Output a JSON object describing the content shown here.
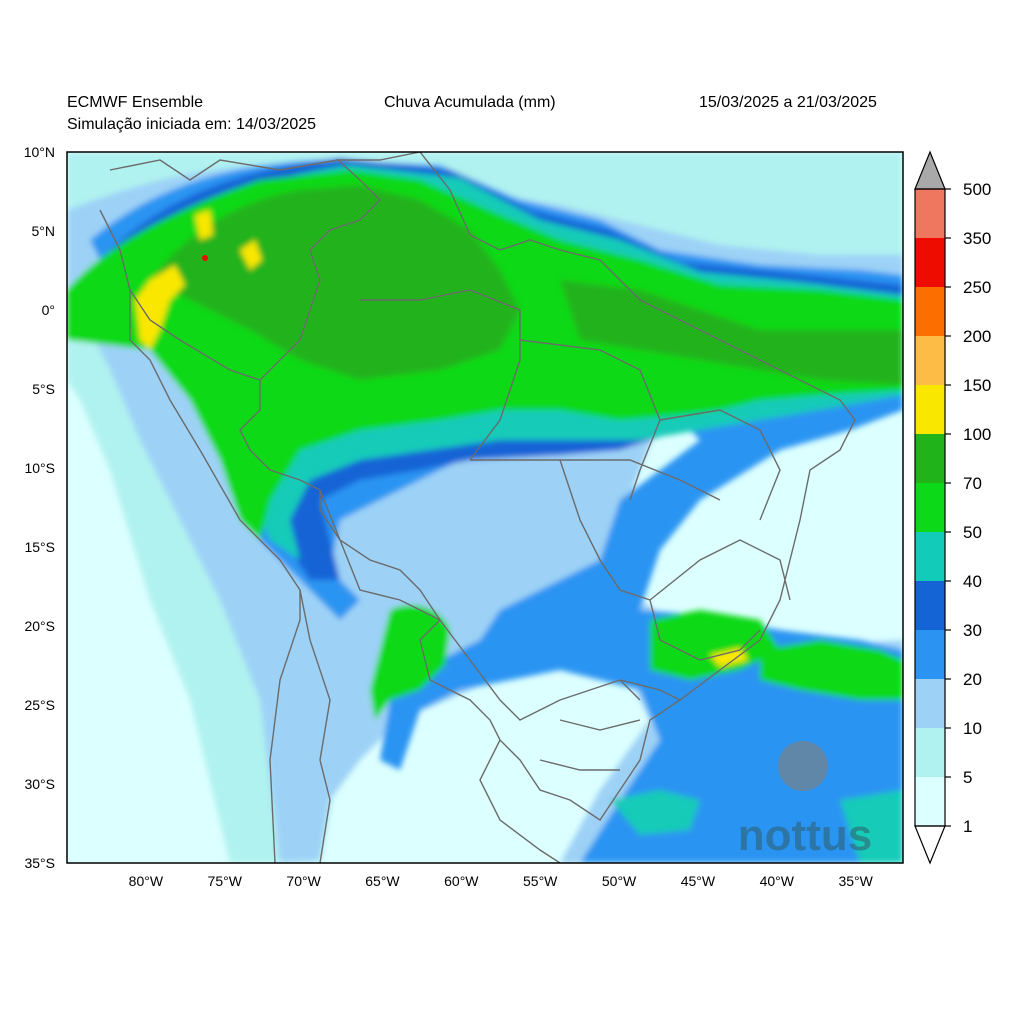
{
  "header": {
    "model": "ECMWF Ensemble",
    "init": "Simulação iniciada em: 14/03/2025",
    "title": "Chuva Acumulada (mm)",
    "period": "15/03/2025 a 21/03/2025"
  },
  "map": {
    "lon_range": [
      -85,
      -32
    ],
    "lat_range": [
      -35,
      10
    ],
    "lat_labels": [
      "10°N",
      "5°N",
      "0°",
      "5°S",
      "10°S",
      "15°S",
      "20°S",
      "25°S",
      "30°S",
      "35°S"
    ],
    "lon_labels": [
      "80°W",
      "75°W",
      "70°W",
      "65°W",
      "60°W",
      "55°W",
      "50°W",
      "45°W",
      "40°W",
      "35°W"
    ]
  },
  "colorbar": {
    "labels": [
      "1",
      "5",
      "10",
      "20",
      "30",
      "40",
      "50",
      "70",
      "100",
      "150",
      "200",
      "250",
      "350",
      "500"
    ],
    "colors": [
      "#dcffff",
      "#b0f2f0",
      "#9dd2f6",
      "#2b94f2",
      "#1464d6",
      "#12cbb8",
      "#0cd918",
      "#21b31a",
      "#f9e700",
      "#fdbc45",
      "#fd6e00",
      "#ee0c00",
      "#f0775f"
    ],
    "over_color": "#a9a9a9",
    "under_color": "#ffffff"
  },
  "watermark": "nottus"
}
